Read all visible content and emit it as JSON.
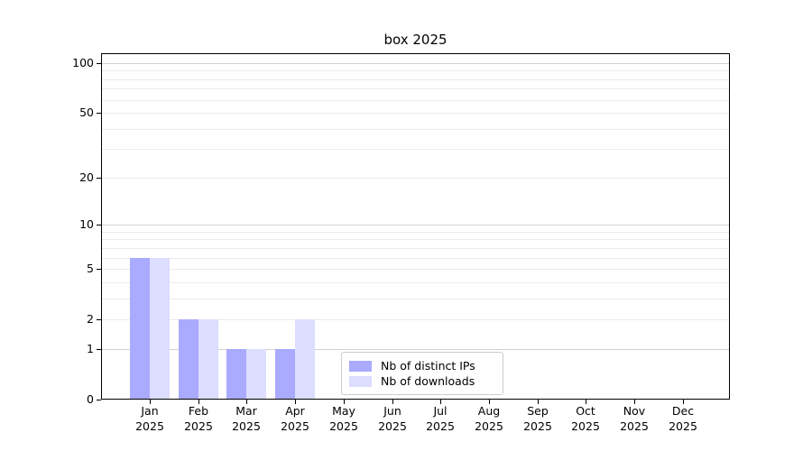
{
  "chart_data": {
    "type": "bar",
    "title": "box 2025",
    "categories": [
      "Jan",
      "Feb",
      "Mar",
      "Apr",
      "May",
      "Jun",
      "Jul",
      "Aug",
      "Sep",
      "Oct",
      "Nov",
      "Dec"
    ],
    "year_label": "2025",
    "series": [
      {
        "name": "Nb of distinct IPs",
        "color": "#aaaaff",
        "values": [
          6,
          2,
          1,
          1,
          0,
          0,
          0,
          0,
          0,
          0,
          0,
          0
        ]
      },
      {
        "name": "Nb of downloads",
        "color": "#ddddff",
        "values": [
          6,
          2,
          1,
          2,
          0,
          0,
          0,
          0,
          0,
          0,
          0,
          0
        ]
      }
    ],
    "yscale": "log1p",
    "ylim": [
      0,
      115
    ],
    "yticks": [
      0,
      1,
      2,
      5,
      10,
      20,
      50,
      100
    ],
    "major_gridlines": [
      1,
      10,
      100
    ],
    "minor_gridlines": [
      2,
      3,
      4,
      5,
      6,
      7,
      8,
      9,
      20,
      30,
      40,
      50,
      60,
      70,
      80,
      90
    ],
    "grid": true,
    "legend_position": "lower center-left"
  },
  "colors": {
    "background": "#ffffff",
    "spine": "#000000",
    "text": "#000000",
    "major_grid": "#d2d2d2",
    "minor_grid": "#ebebeb",
    "legend_border": "#cccccc"
  }
}
